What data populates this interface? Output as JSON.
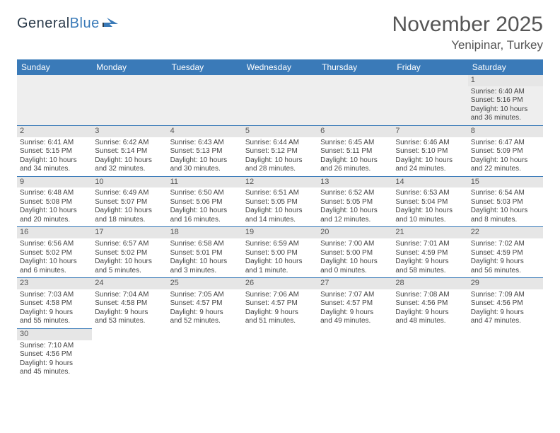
{
  "brand": {
    "part1": "General",
    "part2": "Blue"
  },
  "title": {
    "month": "November 2025",
    "location": "Yenipinar, Turkey"
  },
  "weekdays": [
    "Sunday",
    "Monday",
    "Tuesday",
    "Wednesday",
    "Thursday",
    "Friday",
    "Saturday"
  ],
  "colors": {
    "header_bg": "#3a7ab8",
    "header_text": "#ffffff",
    "daynum_bg": "#e6e6e6",
    "border": "#3a7ab8",
    "body_text": "#444444"
  },
  "font": {
    "family": "Arial",
    "daynum_size": 11,
    "body_size": 10,
    "title_size": 30,
    "loc_size": 17,
    "weekday_size": 12
  },
  "weeks": [
    [
      null,
      null,
      null,
      null,
      null,
      null,
      {
        "n": "1",
        "sr": "Sunrise: 6:40 AM",
        "ss": "Sunset: 5:16 PM",
        "dl1": "Daylight: 10 hours",
        "dl2": "and 36 minutes."
      }
    ],
    [
      {
        "n": "2",
        "sr": "Sunrise: 6:41 AM",
        "ss": "Sunset: 5:15 PM",
        "dl1": "Daylight: 10 hours",
        "dl2": "and 34 minutes."
      },
      {
        "n": "3",
        "sr": "Sunrise: 6:42 AM",
        "ss": "Sunset: 5:14 PM",
        "dl1": "Daylight: 10 hours",
        "dl2": "and 32 minutes."
      },
      {
        "n": "4",
        "sr": "Sunrise: 6:43 AM",
        "ss": "Sunset: 5:13 PM",
        "dl1": "Daylight: 10 hours",
        "dl2": "and 30 minutes."
      },
      {
        "n": "5",
        "sr": "Sunrise: 6:44 AM",
        "ss": "Sunset: 5:12 PM",
        "dl1": "Daylight: 10 hours",
        "dl2": "and 28 minutes."
      },
      {
        "n": "6",
        "sr": "Sunrise: 6:45 AM",
        "ss": "Sunset: 5:11 PM",
        "dl1": "Daylight: 10 hours",
        "dl2": "and 26 minutes."
      },
      {
        "n": "7",
        "sr": "Sunrise: 6:46 AM",
        "ss": "Sunset: 5:10 PM",
        "dl1": "Daylight: 10 hours",
        "dl2": "and 24 minutes."
      },
      {
        "n": "8",
        "sr": "Sunrise: 6:47 AM",
        "ss": "Sunset: 5:09 PM",
        "dl1": "Daylight: 10 hours",
        "dl2": "and 22 minutes."
      }
    ],
    [
      {
        "n": "9",
        "sr": "Sunrise: 6:48 AM",
        "ss": "Sunset: 5:08 PM",
        "dl1": "Daylight: 10 hours",
        "dl2": "and 20 minutes."
      },
      {
        "n": "10",
        "sr": "Sunrise: 6:49 AM",
        "ss": "Sunset: 5:07 PM",
        "dl1": "Daylight: 10 hours",
        "dl2": "and 18 minutes."
      },
      {
        "n": "11",
        "sr": "Sunrise: 6:50 AM",
        "ss": "Sunset: 5:06 PM",
        "dl1": "Daylight: 10 hours",
        "dl2": "and 16 minutes."
      },
      {
        "n": "12",
        "sr": "Sunrise: 6:51 AM",
        "ss": "Sunset: 5:05 PM",
        "dl1": "Daylight: 10 hours",
        "dl2": "and 14 minutes."
      },
      {
        "n": "13",
        "sr": "Sunrise: 6:52 AM",
        "ss": "Sunset: 5:05 PM",
        "dl1": "Daylight: 10 hours",
        "dl2": "and 12 minutes."
      },
      {
        "n": "14",
        "sr": "Sunrise: 6:53 AM",
        "ss": "Sunset: 5:04 PM",
        "dl1": "Daylight: 10 hours",
        "dl2": "and 10 minutes."
      },
      {
        "n": "15",
        "sr": "Sunrise: 6:54 AM",
        "ss": "Sunset: 5:03 PM",
        "dl1": "Daylight: 10 hours",
        "dl2": "and 8 minutes."
      }
    ],
    [
      {
        "n": "16",
        "sr": "Sunrise: 6:56 AM",
        "ss": "Sunset: 5:02 PM",
        "dl1": "Daylight: 10 hours",
        "dl2": "and 6 minutes."
      },
      {
        "n": "17",
        "sr": "Sunrise: 6:57 AM",
        "ss": "Sunset: 5:02 PM",
        "dl1": "Daylight: 10 hours",
        "dl2": "and 5 minutes."
      },
      {
        "n": "18",
        "sr": "Sunrise: 6:58 AM",
        "ss": "Sunset: 5:01 PM",
        "dl1": "Daylight: 10 hours",
        "dl2": "and 3 minutes."
      },
      {
        "n": "19",
        "sr": "Sunrise: 6:59 AM",
        "ss": "Sunset: 5:00 PM",
        "dl1": "Daylight: 10 hours",
        "dl2": "and 1 minute."
      },
      {
        "n": "20",
        "sr": "Sunrise: 7:00 AM",
        "ss": "Sunset: 5:00 PM",
        "dl1": "Daylight: 10 hours",
        "dl2": "and 0 minutes."
      },
      {
        "n": "21",
        "sr": "Sunrise: 7:01 AM",
        "ss": "Sunset: 4:59 PM",
        "dl1": "Daylight: 9 hours",
        "dl2": "and 58 minutes."
      },
      {
        "n": "22",
        "sr": "Sunrise: 7:02 AM",
        "ss": "Sunset: 4:59 PM",
        "dl1": "Daylight: 9 hours",
        "dl2": "and 56 minutes."
      }
    ],
    [
      {
        "n": "23",
        "sr": "Sunrise: 7:03 AM",
        "ss": "Sunset: 4:58 PM",
        "dl1": "Daylight: 9 hours",
        "dl2": "and 55 minutes."
      },
      {
        "n": "24",
        "sr": "Sunrise: 7:04 AM",
        "ss": "Sunset: 4:58 PM",
        "dl1": "Daylight: 9 hours",
        "dl2": "and 53 minutes."
      },
      {
        "n": "25",
        "sr": "Sunrise: 7:05 AM",
        "ss": "Sunset: 4:57 PM",
        "dl1": "Daylight: 9 hours",
        "dl2": "and 52 minutes."
      },
      {
        "n": "26",
        "sr": "Sunrise: 7:06 AM",
        "ss": "Sunset: 4:57 PM",
        "dl1": "Daylight: 9 hours",
        "dl2": "and 51 minutes."
      },
      {
        "n": "27",
        "sr": "Sunrise: 7:07 AM",
        "ss": "Sunset: 4:57 PM",
        "dl1": "Daylight: 9 hours",
        "dl2": "and 49 minutes."
      },
      {
        "n": "28",
        "sr": "Sunrise: 7:08 AM",
        "ss": "Sunset: 4:56 PM",
        "dl1": "Daylight: 9 hours",
        "dl2": "and 48 minutes."
      },
      {
        "n": "29",
        "sr": "Sunrise: 7:09 AM",
        "ss": "Sunset: 4:56 PM",
        "dl1": "Daylight: 9 hours",
        "dl2": "and 47 minutes."
      }
    ],
    [
      {
        "n": "30",
        "sr": "Sunrise: 7:10 AM",
        "ss": "Sunset: 4:56 PM",
        "dl1": "Daylight: 9 hours",
        "dl2": "and 45 minutes."
      },
      null,
      null,
      null,
      null,
      null,
      null
    ]
  ]
}
